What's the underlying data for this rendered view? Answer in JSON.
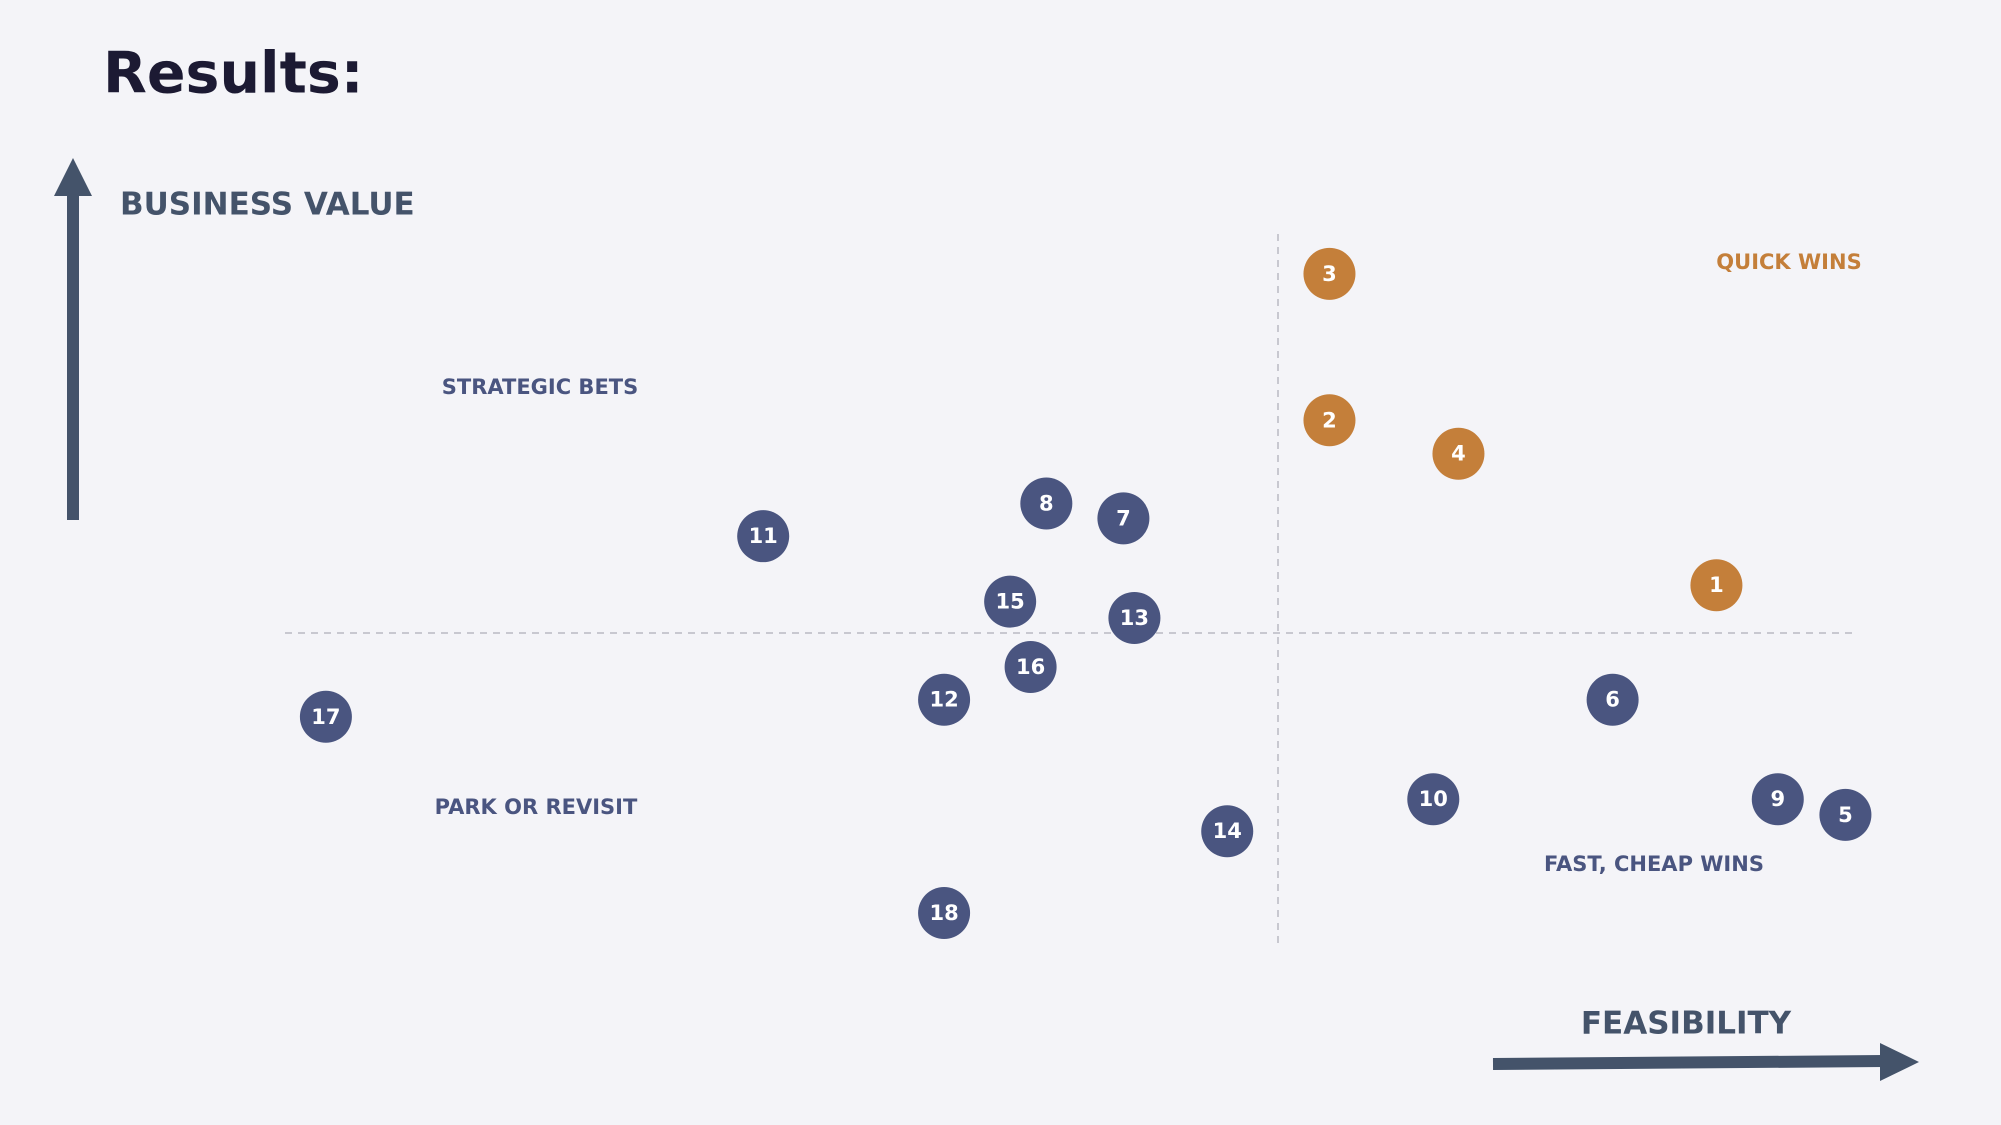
{
  "chart_data": {
    "type": "scatter",
    "title": "Results:",
    "ylabel": "BUSINESS VALUE",
    "xlabel": "FEASIBILITY",
    "quadrants": [
      "QUICK WINS",
      "STRATEGIC BETS",
      "PARK OR REVISIT",
      "FAST, CHEAP WINS"
    ],
    "xlim": [
      0,
      10
    ],
    "ylim": [
      0,
      10
    ],
    "points": [
      {
        "label": 1,
        "x": 9.1,
        "y": 5.06,
        "color": "#c47f3a"
      },
      {
        "label": 2,
        "x": 6.64,
        "y": 7.38,
        "color": "#c47f3a"
      },
      {
        "label": 3,
        "x": 6.64,
        "y": 9.44,
        "color": "#c47f3a"
      },
      {
        "label": 4,
        "x": 7.46,
        "y": 6.91,
        "color": "#c47f3a"
      },
      {
        "label": 5,
        "x": 9.92,
        "y": 1.83,
        "color": "#4a5580"
      },
      {
        "label": 6,
        "x": 8.44,
        "y": 3.45,
        "color": "#4a5580"
      },
      {
        "label": 7,
        "x": 5.33,
        "y": 6.0,
        "color": "#4a5580"
      },
      {
        "label": 8,
        "x": 4.84,
        "y": 6.21,
        "color": "#4a5580"
      },
      {
        "label": 9,
        "x": 9.49,
        "y": 2.05,
        "color": "#4a5580"
      },
      {
        "label": 10,
        "x": 7.3,
        "y": 2.05,
        "color": "#4a5580"
      },
      {
        "label": 11,
        "x": 3.04,
        "y": 5.75,
        "color": "#4a5580"
      },
      {
        "label": 12,
        "x": 4.19,
        "y": 3.45,
        "color": "#4a5580"
      },
      {
        "label": 13,
        "x": 5.4,
        "y": 4.6,
        "color": "#4a5580"
      },
      {
        "label": 14,
        "x": 5.99,
        "y": 1.6,
        "color": "#4a5580"
      },
      {
        "label": 15,
        "x": 4.61,
        "y": 4.83,
        "color": "#4a5580"
      },
      {
        "label": 16,
        "x": 4.74,
        "y": 3.91,
        "color": "#4a5580"
      },
      {
        "label": 17,
        "x": 0.26,
        "y": 3.21,
        "color": "#4a5580"
      },
      {
        "label": 18,
        "x": 4.19,
        "y": 0.45,
        "color": "#4a5580"
      }
    ]
  }
}
